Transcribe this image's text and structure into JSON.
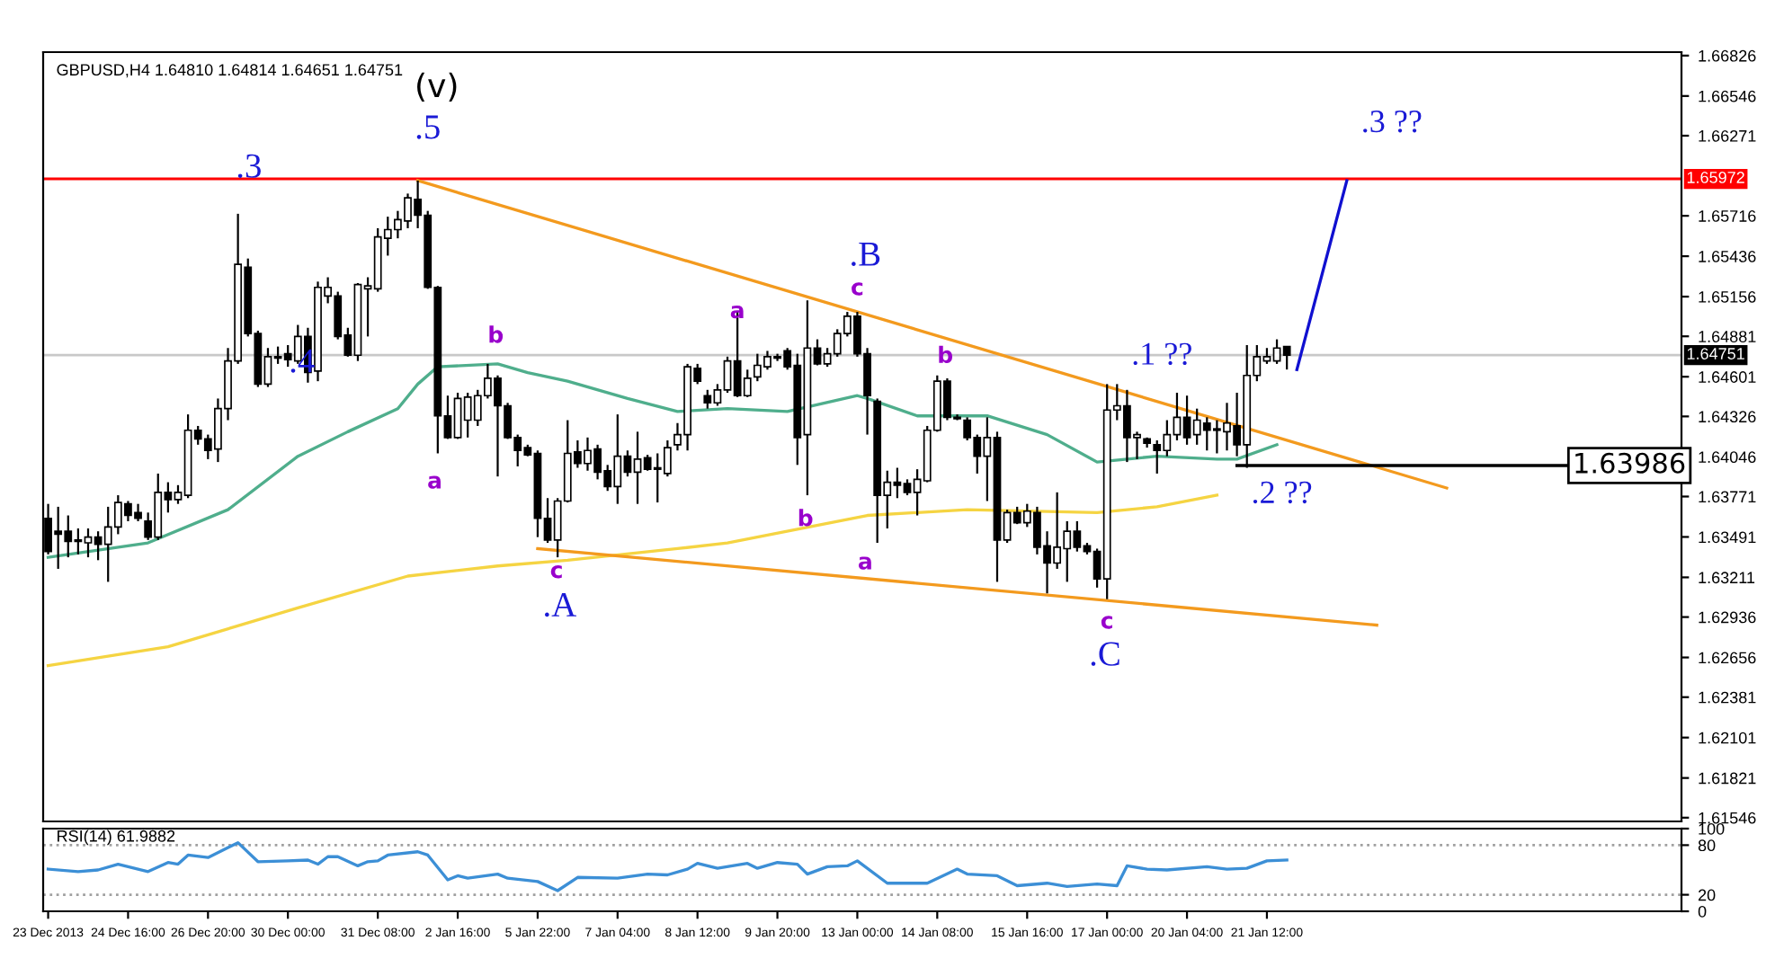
{
  "chart_data": [
    {
      "type": "candlestick",
      "title": "GBPUSD,H4 1.64810 1.64814 1.64651 1.64751",
      "categories": [
        null,
        null,
        null,
        null,
        null,
        null,
        null,
        null,
        null,
        null,
        null,
        null,
        null,
        null,
        null,
        null,
        null,
        null,
        null,
        null,
        null,
        null,
        null,
        null,
        null,
        null,
        null,
        null,
        null,
        null,
        null,
        null,
        null,
        null,
        null,
        null,
        null,
        null,
        null,
        null,
        null,
        null,
        null,
        null,
        null,
        null,
        null,
        null,
        null,
        null,
        null,
        null,
        null,
        null,
        null,
        null,
        null,
        null,
        null,
        null,
        null,
        null,
        null,
        null,
        null,
        null,
        null,
        null,
        null,
        null,
        null,
        null,
        null,
        null,
        null,
        null,
        null,
        null,
        null,
        null,
        null,
        null,
        null,
        null,
        null,
        null,
        null,
        null,
        null,
        null,
        null,
        null,
        null,
        null,
        null,
        null,
        null,
        null,
        null,
        null,
        null,
        null,
        null,
        null,
        null,
        null,
        null,
        null,
        null,
        null,
        null,
        null,
        null,
        null,
        null,
        null,
        null,
        null,
        null,
        null,
        null,
        null,
        null,
        null,
        null,
        null,
        null,
        null,
        null,
        null,
        null,
        null,
        null,
        null,
        null,
        null,
        null,
        null,
        null,
        null,
        null,
        null,
        null,
        null,
        null,
        null,
        null,
        null,
        null,
        null,
        null,
        null,
        null,
        null,
        null,
        null,
        null,
        null,
        null,
        null,
        null,
        null,
        null,
        null
      ],
      "ohlc": [
        [
          1.6362,
          1.6372,
          1.6337,
          1.6339
        ],
        [
          1.6353,
          1.637,
          1.6327,
          1.6351
        ],
        [
          1.6353,
          1.6364,
          1.6335,
          1.6346
        ],
        [
          1.6347,
          1.6355,
          1.6337,
          1.6346
        ],
        [
          1.6345,
          1.6355,
          1.6335,
          1.6349
        ],
        [
          1.6349,
          1.6353,
          1.6333,
          1.6344
        ],
        [
          1.6344,
          1.637,
          1.6318,
          1.6356
        ],
        [
          1.6356,
          1.6378,
          1.6351,
          1.6373
        ],
        [
          1.6372,
          1.6374,
          1.636,
          1.6364
        ],
        [
          1.6366,
          1.6372,
          1.636,
          1.6362
        ],
        [
          1.636,
          1.6366,
          1.6347,
          1.6349
        ],
        [
          1.6349,
          1.6393,
          1.6347,
          1.638
        ],
        [
          1.638,
          1.6387,
          1.6366,
          1.6375
        ],
        [
          1.6375,
          1.6385,
          1.6372,
          1.638
        ],
        [
          1.6378,
          1.6434,
          1.6376,
          1.6423
        ],
        [
          1.6423,
          1.6426,
          1.6413,
          1.6417
        ],
        [
          1.6417,
          1.642,
          1.6403,
          1.6409
        ],
        [
          1.641,
          1.6445,
          1.6401,
          1.6438
        ],
        [
          1.6438,
          1.648,
          1.643,
          1.6471
        ],
        [
          1.6471,
          1.6573,
          1.6469,
          1.6538
        ],
        [
          1.6536,
          1.6542,
          1.6488,
          1.649
        ],
        [
          1.649,
          1.6492,
          1.6453,
          1.6455
        ],
        [
          1.6455,
          1.648,
          1.6453,
          1.6474
        ],
        [
          1.6473,
          1.6481,
          1.6469,
          1.6474
        ],
        [
          1.6476,
          1.6482,
          1.6467,
          1.6472
        ],
        [
          1.6471,
          1.6496,
          1.6469,
          1.6488
        ],
        [
          1.6488,
          1.6494,
          1.6456,
          1.6463
        ],
        [
          1.6464,
          1.6526,
          1.6457,
          1.6522
        ],
        [
          1.6516,
          1.6529,
          1.6511,
          1.6522
        ],
        [
          1.6516,
          1.6519,
          1.6486,
          1.6488
        ],
        [
          1.6489,
          1.6494,
          1.6474,
          1.6475
        ],
        [
          1.6475,
          1.6525,
          1.6471,
          1.6524
        ],
        [
          1.6521,
          1.6529,
          1.6488,
          1.6523
        ],
        [
          1.6521,
          1.6563,
          1.6519,
          1.6557
        ],
        [
          1.6556,
          1.6571,
          1.6544,
          1.6562
        ],
        [
          1.6562,
          1.6575,
          1.6556,
          1.6569
        ],
        [
          1.6568,
          1.6587,
          1.6563,
          1.6584
        ],
        [
          1.6583,
          1.6596,
          1.6563,
          1.6572
        ],
        [
          1.6572,
          1.6575,
          1.6521,
          1.6522
        ],
        [
          1.6522,
          1.6523,
          1.6407,
          1.6433
        ],
        [
          1.6433,
          1.6447,
          1.6417,
          1.6418
        ],
        [
          1.6418,
          1.6449,
          1.6417,
          1.6445
        ],
        [
          1.643,
          1.6449,
          1.6418,
          1.6446
        ],
        [
          1.643,
          1.6451,
          1.6426,
          1.6447
        ],
        [
          1.6447,
          1.6469,
          1.6445,
          1.6459
        ],
        [
          1.6459,
          1.6461,
          1.6391,
          1.644
        ],
        [
          1.644,
          1.6442,
          1.6417,
          1.6418
        ],
        [
          1.6418,
          1.642,
          1.6398,
          1.6409
        ],
        [
          1.6411,
          1.6413,
          1.6405,
          1.6406
        ],
        [
          1.6407,
          1.6409,
          1.6349,
          1.6362
        ],
        [
          1.6362,
          1.6376,
          1.6345,
          1.6347
        ],
        [
          1.6347,
          1.6376,
          1.6335,
          1.6374
        ],
        [
          1.6374,
          1.643,
          1.6373,
          1.6407
        ],
        [
          1.6408,
          1.6416,
          1.6397,
          1.64
        ],
        [
          1.64,
          1.6418,
          1.6395,
          1.6409
        ],
        [
          1.641,
          1.6413,
          1.6389,
          1.6394
        ],
        [
          1.6395,
          1.6399,
          1.6381,
          1.6384
        ],
        [
          1.6384,
          1.6434,
          1.6372,
          1.6405
        ],
        [
          1.6405,
          1.6409,
          1.6391,
          1.6394
        ],
        [
          1.6394,
          1.6422,
          1.6372,
          1.6403
        ],
        [
          1.6404,
          1.6406,
          1.6395,
          1.6396
        ],
        [
          1.6396,
          1.6407,
          1.6373,
          1.6397
        ],
        [
          1.6393,
          1.6416,
          1.6391,
          1.6411
        ],
        [
          1.6413,
          1.6428,
          1.6409,
          1.642
        ],
        [
          1.642,
          1.6469,
          1.6409,
          1.6467
        ],
        [
          1.6466,
          1.6469,
          1.6455,
          1.6457
        ],
        [
          1.6447,
          1.6451,
          1.6438,
          1.6442
        ],
        [
          1.6442,
          1.6455,
          1.644,
          1.6451
        ],
        [
          1.6451,
          1.6474,
          1.6449,
          1.6471
        ],
        [
          1.6471,
          1.6505,
          1.6446,
          1.6447
        ],
        [
          1.6447,
          1.6465,
          1.6446,
          1.6459
        ],
        [
          1.646,
          1.6476,
          1.6457,
          1.6468
        ],
        [
          1.6467,
          1.6478,
          1.6465,
          1.6474
        ],
        [
          1.6474,
          1.6476,
          1.6471,
          1.6473
        ],
        [
          1.6478,
          1.648,
          1.6465,
          1.6467
        ],
        [
          1.6468,
          1.6476,
          1.6399,
          1.6418
        ],
        [
          1.642,
          1.6513,
          1.6378,
          1.648
        ],
        [
          1.648,
          1.6486,
          1.6468,
          1.6469
        ],
        [
          1.6469,
          1.648,
          1.6467,
          1.6476
        ],
        [
          1.6476,
          1.6493,
          1.6474,
          1.649
        ],
        [
          1.649,
          1.6505,
          1.6488,
          1.6502
        ],
        [
          1.6502,
          1.6505,
          1.6474,
          1.6476
        ],
        [
          1.6476,
          1.648,
          1.642,
          1.6447
        ],
        [
          1.6443,
          1.6445,
          1.6345,
          1.6378
        ],
        [
          1.6378,
          1.6395,
          1.6355,
          1.6387
        ],
        [
          1.6387,
          1.6397,
          1.6376,
          1.6385
        ],
        [
          1.6386,
          1.6389,
          1.6378,
          1.638
        ],
        [
          1.638,
          1.6396,
          1.6364,
          1.6389
        ],
        [
          1.6388,
          1.6426,
          1.6387,
          1.6423
        ],
        [
          1.6423,
          1.6461,
          1.6422,
          1.6457
        ],
        [
          1.6457,
          1.6459,
          1.643,
          1.6432
        ],
        [
          1.6432,
          1.6434,
          1.643,
          1.6431
        ],
        [
          1.643,
          1.6432,
          1.6416,
          1.6418
        ],
        [
          1.6418,
          1.642,
          1.6393,
          1.6405
        ],
        [
          1.6405,
          1.6432,
          1.6374,
          1.6418
        ],
        [
          1.6418,
          1.6422,
          1.6318,
          1.6347
        ],
        [
          1.6347,
          1.6368,
          1.6345,
          1.6366
        ],
        [
          1.6366,
          1.637,
          1.6358,
          1.6359
        ],
        [
          1.6359,
          1.6372,
          1.6356,
          1.6367
        ],
        [
          1.6366,
          1.637,
          1.6337,
          1.6342
        ],
        [
          1.6343,
          1.6353,
          1.631,
          1.6331
        ],
        [
          1.6331,
          1.638,
          1.6327,
          1.6342
        ],
        [
          1.6341,
          1.636,
          1.6318,
          1.6353
        ],
        [
          1.6353,
          1.636,
          1.6339,
          1.6342
        ],
        [
          1.6343,
          1.6345,
          1.6337,
          1.6339
        ],
        [
          1.6339,
          1.6341,
          1.6314,
          1.632
        ],
        [
          1.632,
          1.6455,
          1.6306,
          1.6437
        ],
        [
          1.6437,
          1.6455,
          1.643,
          1.644
        ],
        [
          1.644,
          1.6451,
          1.6401,
          1.6418
        ],
        [
          1.6418,
          1.6422,
          1.6403,
          1.642
        ],
        [
          1.6417,
          1.6418,
          1.6411,
          1.6414
        ],
        [
          1.6413,
          1.6416,
          1.6393,
          1.6409
        ],
        [
          1.6409,
          1.643,
          1.6405,
          1.642
        ],
        [
          1.642,
          1.6449,
          1.6416,
          1.6432
        ],
        [
          1.6432,
          1.6447,
          1.6413,
          1.6418
        ],
        [
          1.642,
          1.6438,
          1.6413,
          1.643
        ],
        [
          1.6428,
          1.6432,
          1.6409,
          1.6423
        ],
        [
          1.6424,
          1.643,
          1.6407,
          1.6423
        ],
        [
          1.6422,
          1.6442,
          1.6409,
          1.6428
        ],
        [
          1.6426,
          1.6449,
          1.6405,
          1.6413
        ],
        [
          1.6413,
          1.6482,
          1.6397,
          1.6461
        ],
        [
          1.6461,
          1.6482,
          1.6457,
          1.6474
        ],
        [
          1.6471,
          1.648,
          1.6469,
          1.6474
        ],
        [
          1.6471,
          1.6486,
          1.6469,
          1.648
        ],
        [
          1.6481,
          1.64814,
          1.64651,
          1.64751
        ],
        null,
        null,
        null,
        null,
        null,
        null,
        null,
        null,
        null,
        null,
        null,
        null,
        null,
        null,
        null,
        null,
        null,
        null,
        null,
        null,
        null,
        null,
        null,
        null,
        null,
        null,
        null,
        null,
        null,
        null,
        null,
        null,
        null,
        null,
        null,
        null,
        null,
        null,
        null
      ],
      "series": [
        {
          "type": "line",
          "color": "#4fae8c",
          "values": [
            1.6335,
            null,
            null,
            null,
            null,
            null,
            null,
            null,
            null,
            null,
            1.6345,
            null,
            null,
            null,
            null,
            null,
            null,
            null,
            1.6368,
            null,
            null,
            null,
            null,
            null,
            null,
            1.6405,
            null,
            null,
            null,
            null,
            1.6422,
            null,
            null,
            null,
            null,
            1.6438,
            null,
            1.6455,
            null,
            1.6467,
            null,
            null,
            null,
            null,
            null,
            1.6469,
            null,
            null,
            1.6463,
            null,
            null,
            null,
            1.6457,
            null,
            null,
            null,
            null,
            null,
            1.6445,
            null,
            null,
            null,
            null,
            1.6436,
            null,
            null,
            null,
            null,
            1.6438,
            null,
            null,
            null,
            null,
            null,
            1.6436,
            null,
            null,
            null,
            null,
            null,
            null,
            1.6447,
            1.6445,
            null,
            null,
            null,
            null,
            1.6433,
            null,
            null,
            null,
            null,
            null,
            null,
            1.6433,
            null,
            null,
            null,
            null,
            null,
            1.642,
            null,
            null,
            null,
            null,
            1.6401,
            null,
            null,
            null,
            null,
            null,
            1.6405,
            null,
            null,
            null,
            null,
            null,
            1.6403,
            null,
            1.6403,
            null,
            null,
            null,
            1.6413,
            null,
            null,
            null,
            null,
            null,
            null,
            null,
            null,
            null,
            null,
            null,
            null,
            null,
            null,
            null,
            null,
            null,
            null,
            null,
            null,
            null,
            null,
            null,
            null,
            null,
            null,
            null,
            null,
            null,
            null,
            null,
            null,
            null,
            null,
            null,
            null,
            null,
            null,
            null,
            null
          ]
        },
        {
          "type": "line",
          "color": "#f5d442",
          "values": [
            1.626,
            null,
            null,
            null,
            null,
            null,
            null,
            null,
            null,
            null,
            null,
            null,
            1.6273,
            null,
            null,
            null,
            null,
            null,
            null,
            null,
            null,
            null,
            null,
            null,
            null,
            1.63,
            null,
            null,
            null,
            null,
            null,
            null,
            null,
            null,
            null,
            null,
            1.6322,
            null,
            null,
            null,
            null,
            null,
            null,
            null,
            null,
            1.6329,
            null,
            null,
            null,
            null,
            null,
            null,
            1.6333,
            null,
            null,
            null,
            null,
            null,
            null,
            null,
            null,
            null,
            null,
            1.6341,
            null,
            null,
            null,
            null,
            1.6345,
            null,
            null,
            null,
            null,
            null,
            null,
            null,
            null,
            null,
            null,
            null,
            null,
            null,
            1.6364,
            null,
            null,
            null,
            null,
            null,
            null,
            null,
            null,
            null,
            1.6368,
            null,
            null,
            null,
            null,
            null,
            null,
            null,
            null,
            null,
            null,
            null,
            null,
            1.6366,
            null,
            null,
            null,
            null,
            null,
            1.637,
            null,
            null,
            null,
            null,
            null,
            1.6378,
            null,
            null,
            null,
            null,
            null,
            null,
            null,
            null,
            null,
            null,
            null,
            null,
            null,
            null,
            null,
            null,
            null,
            null,
            null,
            null,
            null,
            null,
            null,
            null,
            null,
            null,
            null,
            null,
            null,
            null,
            null,
            null,
            null,
            null,
            null,
            null,
            null,
            null,
            null,
            null,
            null,
            null,
            null,
            null,
            null,
            null
          ]
        },
        {
          "type": "line",
          "color": "#f39a1e",
          "values": [
            null,
            null,
            null,
            null,
            null,
            null,
            null,
            null,
            null,
            null,
            null,
            null,
            null,
            null,
            null,
            null,
            null,
            null,
            null,
            null,
            null,
            null,
            null,
            null,
            null,
            null,
            null,
            null,
            null,
            null,
            null,
            null,
            null,
            null,
            null,
            null,
            null,
            1.6596,
            null,
            null,
            null,
            null,
            null,
            null,
            null,
            null,
            null,
            null,
            null,
            null,
            null,
            null,
            null,
            null,
            null,
            null,
            null,
            null,
            null,
            null,
            null,
            null,
            null,
            null,
            null,
            null,
            null,
            null,
            null,
            null,
            null,
            null,
            null,
            null,
            null,
            null,
            null,
            null,
            null,
            null,
            null,
            null,
            null,
            null,
            null,
            null,
            null,
            null,
            null,
            null,
            null,
            null,
            null,
            null,
            null,
            null,
            null,
            null,
            null,
            null,
            null,
            null,
            null,
            null,
            null,
            null,
            null,
            null,
            null,
            null,
            null,
            null,
            null,
            null,
            null,
            null,
            null,
            null,
            null,
            null,
            null,
            null,
            null,
            null,
            null,
            null,
            null,
            null,
            null,
            null,
            null,
            null,
            null,
            null,
            null,
            null,
            null,
            null,
            null,
            null,
            1.6383,
            null,
            null,
            null,
            null,
            null,
            null,
            null,
            null,
            null,
            null,
            null,
            null,
            null,
            null,
            null,
            null,
            null,
            null,
            null,
            null,
            null,
            null,
            null
          ]
        },
        {
          "type": "line",
          "color": "#f39a1e",
          "values": [
            null,
            null,
            null,
            null,
            null,
            null,
            null,
            null,
            null,
            null,
            null,
            null,
            null,
            null,
            null,
            null,
            null,
            null,
            null,
            null,
            null,
            null,
            null,
            null,
            null,
            null,
            null,
            null,
            null,
            null,
            null,
            null,
            null,
            null,
            null,
            null,
            null,
            null,
            null,
            null,
            null,
            null,
            null,
            null,
            null,
            null,
            null,
            null,
            null,
            1.6341,
            null,
            null,
            null,
            null,
            null,
            null,
            null,
            null,
            null,
            null,
            null,
            null,
            null,
            null,
            null,
            null,
            null,
            null,
            null,
            null,
            null,
            null,
            null,
            null,
            null,
            null,
            null,
            null,
            null,
            null,
            null,
            null,
            null,
            null,
            null,
            null,
            null,
            null,
            null,
            null,
            null,
            null,
            null,
            null,
            null,
            null,
            null,
            null,
            null,
            null,
            null,
            null,
            null,
            null,
            null,
            null,
            null,
            null,
            null,
            null,
            null,
            null,
            null,
            null,
            null,
            null,
            null,
            null,
            null,
            null,
            null,
            null,
            null,
            null,
            null,
            null,
            null,
            null,
            null,
            null,
            null,
            null,
            null,
            1.6288,
            null,
            null,
            null,
            null,
            null,
            null,
            null,
            null,
            null,
            null,
            null,
            null,
            null,
            null,
            null,
            null,
            null,
            null,
            null,
            null,
            null,
            null,
            null,
            null,
            null,
            null,
            null,
            null,
            null,
            null
          ]
        },
        {
          "type": "line",
          "color": "#1010d0",
          "values": [
            null,
            null,
            null,
            null,
            null,
            null,
            null,
            null,
            null,
            null,
            null,
            null,
            null,
            null,
            null,
            null,
            null,
            null,
            null,
            null,
            null,
            null,
            null,
            null,
            null,
            null,
            null,
            null,
            null,
            null,
            null,
            null,
            null,
            null,
            null,
            null,
            null,
            null,
            null,
            null,
            null,
            null,
            null,
            null,
            null,
            null,
            null,
            null,
            null,
            null,
            null,
            null,
            null,
            null,
            null,
            null,
            null,
            null,
            null,
            null,
            null,
            null,
            null,
            null,
            null,
            null,
            null,
            null,
            null,
            null,
            null,
            null,
            null,
            null,
            null,
            null,
            null,
            null,
            null,
            null,
            null,
            null,
            null,
            null,
            null,
            null,
            null,
            null,
            null,
            null,
            null,
            null,
            null,
            null,
            null,
            null,
            null,
            null,
            null,
            null,
            null,
            null,
            null,
            null,
            null,
            null,
            null,
            null,
            null,
            null,
            null,
            null,
            null,
            null,
            null,
            null,
            null,
            null,
            null,
            null,
            null,
            null,
            null,
            null,
            null,
            1.6465,
            null,
            null,
            null,
            null,
            1.6596,
            null,
            null,
            null,
            null,
            null,
            null,
            null,
            null,
            null,
            null,
            null,
            null,
            null,
            null,
            null,
            null,
            null,
            null,
            null,
            null,
            null,
            null,
            null,
            null,
            null,
            null,
            null,
            null,
            null,
            null,
            null,
            null,
            null
          ]
        },
        {
          "type": "line",
          "color": "#000000",
          "values": [
            null,
            null,
            null,
            null,
            null,
            null,
            null,
            null,
            null,
            null,
            null,
            null,
            null,
            null,
            null,
            null,
            null,
            null,
            null,
            null,
            null,
            null,
            null,
            null,
            null,
            null,
            null,
            null,
            null,
            null,
            null,
            null,
            null,
            null,
            null,
            null,
            null,
            null,
            null,
            null,
            null,
            null,
            null,
            null,
            null,
            null,
            null,
            null,
            null,
            null,
            null,
            null,
            null,
            null,
            null,
            null,
            null,
            null,
            null,
            null,
            null,
            null,
            null,
            null,
            null,
            null,
            null,
            null,
            null,
            null,
            null,
            null,
            null,
            null,
            null,
            null,
            null,
            null,
            null,
            null,
            null,
            null,
            null,
            null,
            null,
            null,
            null,
            null,
            null,
            null,
            null,
            null,
            null,
            null,
            null,
            null,
            null,
            null,
            null,
            null,
            null,
            null,
            null,
            null,
            null,
            null,
            null,
            null,
            null,
            null,
            null,
            null,
            null,
            null,
            null,
            null,
            null,
            null,
            null,
            1.63986,
            null,
            null,
            null,
            null,
            null,
            null,
            null,
            null,
            null,
            null,
            null,
            null,
            null,
            null,
            null,
            null,
            null,
            null,
            null,
            null,
            null,
            null,
            null,
            null,
            null,
            null,
            null,
            null,
            null,
            null,
            null,
            null,
            1.63986,
            null,
            null,
            null,
            null,
            null,
            null,
            null,
            null,
            null,
            null,
            null
          ]
        }
      ],
      "ref_lines": [
        {
          "axis": "y",
          "value": 1.65972,
          "label": "1.65972",
          "color": "#ff0000"
        },
        {
          "axis": "y",
          "value": 1.64751,
          "label": "1.64751",
          "color": "#c8c8c8"
        }
      ],
      "annotations": [
        "(v)",
        ".5",
        ".3",
        ".4",
        ".A",
        ".B",
        ".C",
        ".1 ??",
        ".2 ??",
        ".3 ??",
        "a",
        "b",
        "c",
        "a",
        "c",
        "b",
        "b",
        "a",
        "c",
        "1.63986"
      ],
      "ylim": [
        1.6152,
        1.6685
      ],
      "yticks": [
        1.61546,
        1.61821,
        1.62101,
        1.62381,
        1.62656,
        1.62936,
        1.63211,
        1.63491,
        1.63771,
        1.64046,
        1.64326,
        1.64601,
        1.64881,
        1.65156,
        1.65436,
        1.65716,
        1.66271,
        1.66546,
        1.66826
      ],
      "tick_labels": "y"
    },
    {
      "type": "line",
      "title": "RSI(14) 61.9882",
      "categories": [
        "23 Dec 2013",
        null,
        null,
        null,
        null,
        null,
        null,
        null,
        "24 Dec 16:00",
        null,
        null,
        null,
        null,
        null,
        null,
        null,
        "26 Dec 20:00",
        null,
        null,
        null,
        null,
        null,
        null,
        null,
        "30 Dec 00:00",
        null,
        null,
        null,
        null,
        null,
        null,
        null,
        null,
        "31 Dec 08:00",
        null,
        null,
        null,
        null,
        null,
        null,
        null,
        "2 Jan 16:00",
        null,
        null,
        null,
        null,
        null,
        null,
        null,
        "5 Jan 22:00",
        null,
        null,
        null,
        null,
        null,
        null,
        null,
        "7 Jan 04:00",
        null,
        null,
        null,
        null,
        null,
        null,
        null,
        "8 Jan 12:00",
        null,
        null,
        null,
        null,
        null,
        null,
        null,
        "9 Jan 20:00",
        null,
        null,
        null,
        null,
        null,
        null,
        null,
        "13 Jan 00:00",
        null,
        null,
        null,
        null,
        null,
        null,
        null,
        "14 Jan 08:00",
        null,
        null,
        null,
        null,
        null,
        null,
        null,
        null,
        "15 Jan 16:00",
        null,
        null,
        null,
        null,
        null,
        null,
        null,
        "17 Jan 00:00",
        null,
        null,
        null,
        null,
        null,
        null,
        null,
        "20 Jan 04:00",
        null,
        null,
        null,
        null,
        null,
        null,
        null,
        "21 Jan 12:00",
        null,
        null,
        null,
        null,
        null,
        null,
        null,
        null,
        null,
        null,
        null,
        null,
        null,
        null,
        null,
        null,
        null,
        null,
        null,
        null,
        null,
        null,
        null,
        null,
        null,
        null,
        null,
        null,
        null,
        null,
        null,
        null,
        null,
        null,
        null,
        null,
        null,
        null,
        null,
        null,
        null
      ],
      "series": [
        {
          "color": "#3c8fd6",
          "values": [
            51,
            null,
            null,
            48,
            null,
            50,
            null,
            57,
            null,
            null,
            48,
            null,
            59,
            57,
            68,
            null,
            65,
            null,
            null,
            83,
            null,
            60,
            null,
            null,
            61,
            null,
            62,
            57,
            66,
            66,
            null,
            55,
            60,
            61,
            68,
            null,
            null,
            72,
            68,
            null,
            38,
            43,
            40,
            null,
            null,
            45,
            40,
            null,
            null,
            36,
            null,
            25,
            null,
            41,
            null,
            null,
            null,
            40,
            null,
            null,
            45,
            null,
            44,
            null,
            51,
            58,
            null,
            52,
            null,
            null,
            58,
            52,
            null,
            59,
            null,
            57,
            45,
            null,
            54,
            null,
            55,
            61,
            null,
            null,
            34,
            null,
            null,
            null,
            34,
            null,
            null,
            51,
            45,
            null,
            null,
            43,
            null,
            31,
            null,
            null,
            34,
            null,
            30,
            null,
            null,
            33,
            null,
            31,
            55,
            null,
            51,
            null,
            50,
            null,
            null,
            null,
            54,
            null,
            51,
            null,
            52,
            null,
            61,
            null,
            62,
            null,
            null,
            null,
            null,
            null,
            null,
            null,
            null,
            null,
            null,
            null,
            null,
            null,
            null,
            null,
            null,
            null,
            null,
            null,
            null,
            null,
            null,
            null,
            null,
            null,
            null,
            null,
            null,
            null,
            null,
            null,
            null,
            null,
            null,
            null,
            null,
            null,
            null,
            null
          ]
        }
      ],
      "ref_lines": [
        {
          "axis": "y",
          "value": 80,
          "color": "#a0a0a0",
          "line_style": "dotted"
        },
        {
          "axis": "y",
          "value": 20,
          "color": "#a0a0a0",
          "line_style": "dotted"
        }
      ],
      "ylim": [
        0,
        100
      ],
      "yticks": [
        0,
        20,
        80,
        100
      ]
    }
  ]
}
